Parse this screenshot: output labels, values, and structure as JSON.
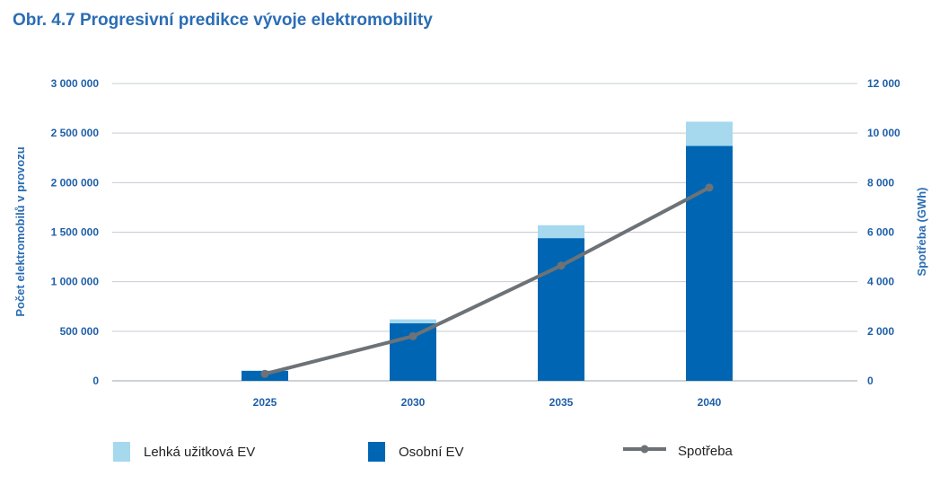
{
  "title": "Obr. 4.7 Progresivní predikce vývoje elektromobility",
  "chart_data": {
    "type": "bar",
    "stacked": true,
    "categories": [
      "2025",
      "2030",
      "2035",
      "2040"
    ],
    "series": [
      {
        "name": "Osobní EV",
        "type": "bar",
        "axis": "left",
        "color": "#0066b3",
        "values": [
          100000,
          580000,
          1440000,
          2370000
        ]
      },
      {
        "name": "Lehká užitková EV",
        "type": "bar",
        "axis": "left",
        "color": "#a6d8ee",
        "values": [
          5000,
          40000,
          130000,
          245000
        ]
      },
      {
        "name": "Spotřeba",
        "type": "line",
        "axis": "right",
        "color": "#6d7277",
        "values": [
          280,
          1800,
          4650,
          7800
        ]
      }
    ],
    "ylabel_left": "Počet elektromobilů v provozu",
    "ylabel_right": "Spotřeba (GWh)",
    "ylim_left": [
      0,
      3000000
    ],
    "ylim_right": [
      0,
      12000
    ],
    "yticks_left": [
      "0",
      "500 000",
      "1 000 000",
      "1 500 000",
      "2 000 000",
      "2 500 000",
      "3 000 000"
    ],
    "yticks_right": [
      "0",
      "2 000",
      "4 000",
      "6 000",
      "8 000",
      "10 000",
      "12 000"
    ],
    "grid": true,
    "legend": {
      "position": "bottom",
      "items": [
        "Lehká užitková EV",
        "Osobní EV",
        "Spotřeba"
      ]
    }
  }
}
